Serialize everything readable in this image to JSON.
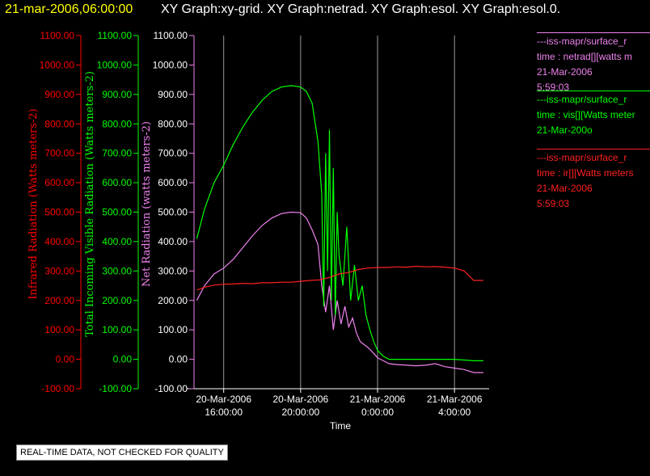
{
  "header": {
    "date": "21-mar-2006,06:00:00",
    "title": "XY Graph:xy-grid.  XY Graph:netrad.  XY Graph:esol.  XY Graph:esol.0."
  },
  "legend": [
    {
      "lines": [
        "---iss-mapr/surface_r",
        "time : netrad[][watts m",
        "21-Mar-2006",
        "5:59:03"
      ],
      "color": "#ee82ee"
    },
    {
      "lines": [
        "---iss-mapr/surface_r",
        "time : vis[][Watts meter",
        "21-Mar-200o"
      ],
      "color": "#00ff00"
    },
    {
      "lines": [
        "---iss-mapr/surface_r",
        "time : ir[][Watts meters",
        "21-Mar-2006",
        "5:59:03"
      ],
      "color": "#ff2020"
    }
  ],
  "quality_note": "REAL-TIME DATA, NOT CHECKED FOR QUALITY",
  "chart_data": {
    "type": "line",
    "xlabel": "Time",
    "x_range_hours": [
      14.5,
      29.8
    ],
    "x_ticks": [
      {
        "h": 16,
        "l1": "20-Mar-2006",
        "l2": "16:00:00"
      },
      {
        "h": 20,
        "l1": "20-Mar-2006",
        "l2": "20:00:00"
      },
      {
        "h": 24,
        "l1": "21-Mar-2006",
        "l2": "0:00:00"
      },
      {
        "h": 28,
        "l1": "21-Mar-2006",
        "l2": "4:00:00"
      }
    ],
    "ylim": [
      -100,
      1100
    ],
    "y_ticks": [
      "1100.00",
      "1000.00",
      "900.00",
      "800.00",
      "700.00",
      "600.00",
      "500.00",
      "400.00",
      "300.00",
      "200.00",
      "100.00",
      "0.00",
      "-100.00"
    ],
    "axes": [
      {
        "label": "Infrared Radiation (Watts meters-2)",
        "color": "#ff0000"
      },
      {
        "label": "Total Incoming Visible Radiation (Watts meters-2)",
        "color": "#00ff00"
      },
      {
        "label": "Net Radiation (watts meters-2)",
        "color": "#ee82ee"
      }
    ],
    "series": [
      {
        "color": "#ee82ee",
        "x": [
          14.6,
          15.0,
          15.5,
          16.0,
          16.5,
          17.0,
          17.5,
          18.0,
          18.5,
          19.0,
          19.5,
          20.0,
          20.3,
          20.6,
          20.9,
          21.1,
          21.3,
          21.5,
          21.7,
          21.9,
          22.1,
          22.3,
          22.5,
          22.7,
          22.9,
          23.1,
          23.3,
          23.5,
          23.8,
          24.0,
          24.3,
          24.6,
          25.0,
          25.5,
          26.0,
          26.5,
          27.0,
          27.5,
          28.0,
          28.5,
          29.0,
          29.5
        ],
        "values": [
          200,
          250,
          290,
          310,
          340,
          380,
          420,
          455,
          480,
          495,
          500,
          498,
          480,
          440,
          390,
          250,
          160,
          250,
          100,
          200,
          120,
          180,
          110,
          140,
          90,
          60,
          50,
          40,
          20,
          5,
          -5,
          -15,
          -18,
          -20,
          -22,
          -20,
          -15,
          -25,
          -30,
          -35,
          -45,
          -45
        ]
      },
      {
        "color": "#00ff00",
        "x": [
          14.6,
          15.0,
          15.5,
          16.0,
          16.5,
          17.0,
          17.5,
          18.0,
          18.5,
          19.0,
          19.5,
          20.0,
          20.3,
          20.6,
          20.9,
          21.1,
          21.2,
          21.3,
          21.4,
          21.5,
          21.6,
          21.7,
          21.8,
          21.9,
          22.0,
          22.2,
          22.4,
          22.6,
          22.8,
          23.0,
          23.2,
          23.4,
          23.6,
          23.8,
          24.0,
          24.3,
          24.6,
          25.0,
          26.0,
          27.0,
          28.0,
          29.0,
          29.5
        ],
        "values": [
          410,
          510,
          600,
          660,
          730,
          790,
          840,
          880,
          910,
          925,
          930,
          925,
          910,
          870,
          740,
          560,
          180,
          700,
          300,
          780,
          200,
          650,
          150,
          500,
          350,
          250,
          450,
          200,
          320,
          200,
          250,
          150,
          100,
          60,
          30,
          10,
          0,
          0,
          0,
          0,
          0,
          -5,
          -5
        ]
      },
      {
        "color": "#ff2020",
        "x": [
          14.6,
          15.0,
          15.5,
          16.0,
          16.5,
          17.0,
          17.5,
          18.0,
          18.5,
          19.0,
          19.5,
          20.0,
          20.5,
          21.0,
          21.5,
          22.0,
          22.5,
          23.0,
          23.5,
          24.0,
          24.5,
          25.0,
          25.5,
          26.0,
          26.5,
          27.0,
          27.5,
          28.0,
          28.5,
          29.0,
          29.5
        ],
        "values": [
          235,
          245,
          252,
          255,
          256,
          258,
          257,
          260,
          260,
          262,
          262,
          265,
          268,
          270,
          278,
          290,
          295,
          305,
          310,
          312,
          312,
          314,
          313,
          316,
          314,
          315,
          313,
          310,
          300,
          268,
          268
        ]
      }
    ]
  }
}
